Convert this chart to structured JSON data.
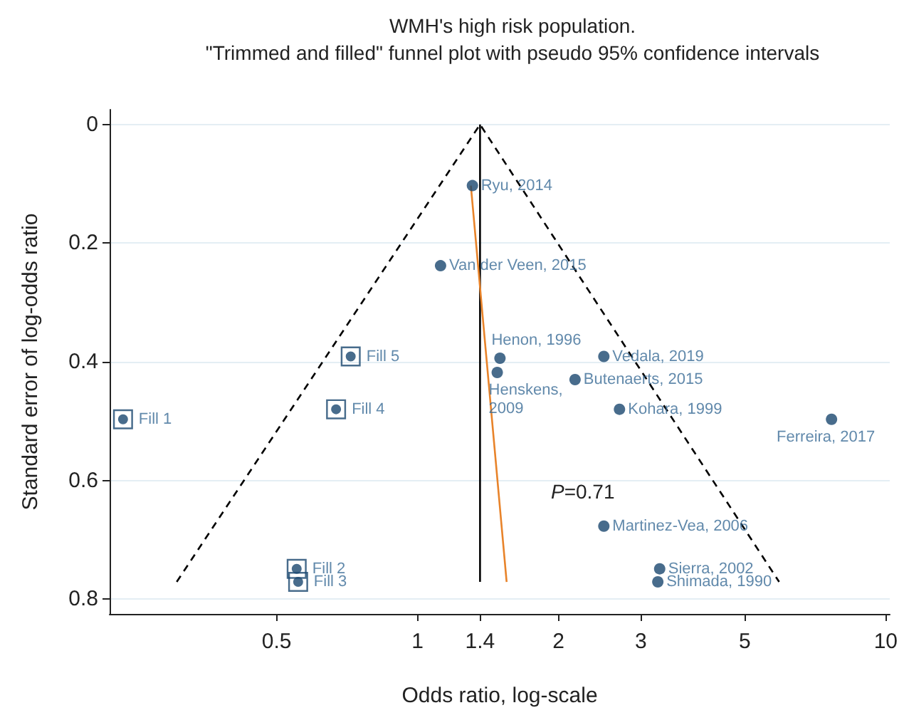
{
  "chart_data": {
    "type": "scatter",
    "title": "WMH's high risk population.",
    "subtitle": "\"Trimmed and filled\" funnel plot with pseudo 95% confidence intervals",
    "xlabel": "Odds ratio, log-scale",
    "ylabel": "Standard error of log-odds ratio",
    "log": "x",
    "grid": "y",
    "xlim": [
      0.22,
      10.2
    ],
    "ylim": [
      0.825,
      -0.025
    ],
    "xticks": [
      0.5,
      1,
      {
        "value": 1.36,
        "label": "1.4"
      },
      2,
      3,
      5,
      10
    ],
    "yticks": [
      0,
      0.2,
      0.4,
      0.6,
      0.8
    ],
    "annotations": [
      "P=0.71",
      {
        "text": "Ryu, 2014",
        "x": 1.31,
        "y": 0.103
      },
      {
        "text": "Van der Veen, 2015",
        "x": 1.12,
        "y": 0.238
      },
      {
        "text": "Henon, 1996",
        "x": 1.5,
        "y": 0.394
      },
      {
        "text": "Henskens, 2009",
        "x": 1.48,
        "y": 0.418
      },
      {
        "text": "Vedala, 2019",
        "x": 2.5,
        "y": 0.391
      },
      {
        "text": "Butenaerts, 2015",
        "x": 2.17,
        "y": 0.43
      },
      {
        "text": "Kohara, 1999",
        "x": 2.7,
        "y": 0.48
      },
      {
        "text": "Ferreira, 2017",
        "x": 7.66,
        "y": 0.497
      },
      {
        "text": "Martinez-Vea, 2006",
        "x": 2.5,
        "y": 0.677
      },
      {
        "text": "Sierra, 2002",
        "x": 3.29,
        "y": 0.749
      },
      {
        "text": "Shimada, 1990",
        "x": 3.26,
        "y": 0.771
      },
      {
        "text": "Fill 1",
        "x": 0.235,
        "y": 0.497
      },
      {
        "text": "Fill 2",
        "x": 0.552,
        "y": 0.749
      },
      {
        "text": "Fill 3",
        "x": 0.556,
        "y": 0.771
      },
      {
        "text": "Fill 4",
        "x": 0.67,
        "y": 0.48
      },
      {
        "text": "Fill 5",
        "x": 0.72,
        "y": 0.391
      }
    ],
    "series": [
      {
        "type": "line",
        "color": "#000000",
        "line_style": "solid",
        "marker": "none",
        "x": [
          1.36,
          1.36
        ],
        "values": [
          0,
          0.771
        ]
      },
      {
        "type": "line",
        "color": "#000000",
        "line_style": "dashed",
        "marker": "none",
        "x": [
          0.306,
          1.36,
          5.92
        ],
        "values": [
          0.771,
          0,
          0.771
        ]
      },
      {
        "type": "line",
        "color": "#e8832a",
        "line_style": "solid",
        "marker": "none",
        "x": [
          1.3,
          1.55
        ],
        "values": [
          0.103,
          0.771
        ]
      },
      {
        "color": "#1a476f",
        "marker": "circle",
        "x": [
          1.31,
          1.12,
          1.5,
          1.48,
          2.5,
          2.17,
          2.7,
          7.66,
          2.5,
          3.29,
          3.26
        ],
        "values": [
          0.103,
          0.238,
          0.394,
          0.418,
          0.391,
          0.43,
          0.48,
          0.497,
          0.677,
          0.749,
          0.771
        ]
      },
      {
        "color": "#1a476f",
        "marker": "square",
        "x": [
          0.235,
          0.552,
          0.556,
          0.67,
          0.72
        ],
        "values": [
          0.497,
          0.749,
          0.771,
          0.48,
          0.391
        ]
      }
    ]
  }
}
